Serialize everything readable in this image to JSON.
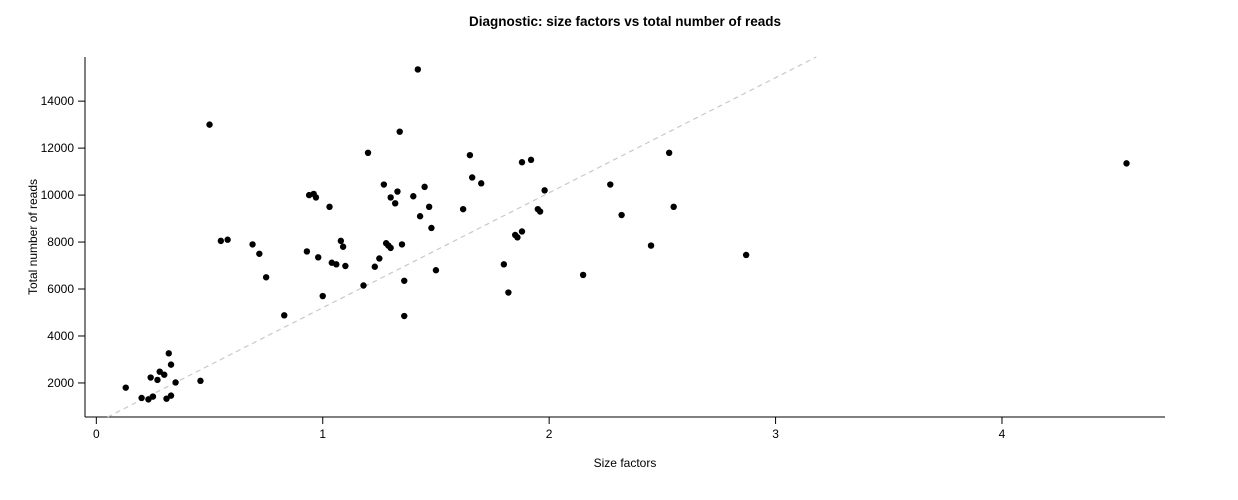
{
  "page": {
    "background": "#ffffff"
  },
  "chart_data": {
    "type": "scatter",
    "title": "Diagnostic: size factors vs total number of reads",
    "xlabel": "Size factors",
    "ylabel": "Total number of reads",
    "xlim": [
      -0.05,
      4.72
    ],
    "ylim": [
      550,
      15880
    ],
    "x_ticks": [
      0,
      1,
      2,
      3,
      4
    ],
    "y_ticks": [
      2000,
      4000,
      6000,
      8000,
      10000,
      12000,
      14000
    ],
    "grid": false,
    "legend": "none",
    "point_color": "#000000",
    "point_radius": 3.2,
    "axis_color": "#000000",
    "trend_line": {
      "style": "dashed",
      "color": "#c9c9c9",
      "x1": 0.05,
      "y1": 550,
      "x2": 3.18,
      "y2": 15880
    },
    "points": [
      [
        0.13,
        1800
      ],
      [
        0.2,
        1360
      ],
      [
        0.23,
        1300
      ],
      [
        0.25,
        1420
      ],
      [
        0.24,
        2230
      ],
      [
        0.27,
        2130
      ],
      [
        0.28,
        2480
      ],
      [
        0.3,
        2350
      ],
      [
        0.31,
        1330
      ],
      [
        0.33,
        1460
      ],
      [
        0.32,
        3260
      ],
      [
        0.33,
        2780
      ],
      [
        0.35,
        2020
      ],
      [
        0.46,
        2090
      ],
      [
        0.5,
        13000
      ],
      [
        0.55,
        8050
      ],
      [
        0.58,
        8100
      ],
      [
        0.69,
        7900
      ],
      [
        0.72,
        7500
      ],
      [
        0.75,
        6500
      ],
      [
        0.83,
        4880
      ],
      [
        0.93,
        7600
      ],
      [
        0.94,
        10000
      ],
      [
        0.96,
        10050
      ],
      [
        0.97,
        9900
      ],
      [
        0.98,
        7350
      ],
      [
        1.0,
        5700
      ],
      [
        1.03,
        9500
      ],
      [
        1.04,
        7120
      ],
      [
        1.06,
        7050
      ],
      [
        1.08,
        8050
      ],
      [
        1.09,
        7800
      ],
      [
        1.1,
        6980
      ],
      [
        1.18,
        6150
      ],
      [
        1.2,
        11800
      ],
      [
        1.23,
        6950
      ],
      [
        1.25,
        7300
      ],
      [
        1.27,
        10450
      ],
      [
        1.28,
        7950
      ],
      [
        1.29,
        7850
      ],
      [
        1.3,
        7750
      ],
      [
        1.3,
        9900
      ],
      [
        1.32,
        9650
      ],
      [
        1.33,
        10150
      ],
      [
        1.34,
        12700
      ],
      [
        1.35,
        7900
      ],
      [
        1.36,
        6350
      ],
      [
        1.36,
        4850
      ],
      [
        1.4,
        9950
      ],
      [
        1.42,
        15350
      ],
      [
        1.43,
        9100
      ],
      [
        1.45,
        10350
      ],
      [
        1.47,
        9500
      ],
      [
        1.48,
        8600
      ],
      [
        1.5,
        6800
      ],
      [
        1.62,
        9400
      ],
      [
        1.65,
        11700
      ],
      [
        1.66,
        10750
      ],
      [
        1.7,
        10500
      ],
      [
        1.8,
        7050
      ],
      [
        1.82,
        5850
      ],
      [
        1.85,
        8300
      ],
      [
        1.86,
        8200
      ],
      [
        1.88,
        8450
      ],
      [
        1.88,
        11400
      ],
      [
        1.92,
        11500
      ],
      [
        1.95,
        9400
      ],
      [
        1.96,
        9300
      ],
      [
        1.98,
        10200
      ],
      [
        2.15,
        6600
      ],
      [
        2.27,
        10450
      ],
      [
        2.32,
        9150
      ],
      [
        2.45,
        7850
      ],
      [
        2.53,
        11800
      ],
      [
        2.55,
        9500
      ],
      [
        2.87,
        7450
      ],
      [
        4.55,
        11350
      ]
    ]
  }
}
